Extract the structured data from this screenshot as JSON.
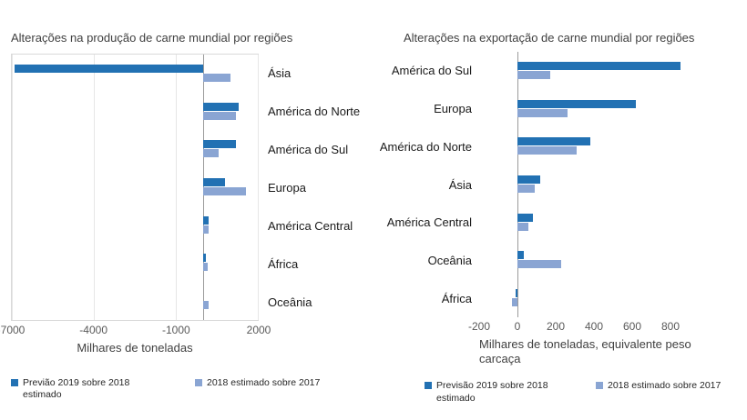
{
  "colors": {
    "series1": "#2271b3",
    "series2": "#8aa5d3",
    "plot_border": "#d9d9d9",
    "gridline": "#e6e6e6",
    "zero_axis": "#9b9b9b"
  },
  "chart_data": [
    {
      "type": "bar",
      "orientation": "horizontal",
      "title": "Alterações na produção de carne mundial por regiões",
      "categories": [
        "Ásia",
        "América do Norte",
        "América do Sul",
        "Europa",
        "América Central",
        "África",
        "Oceânia"
      ],
      "series": [
        {
          "name": "Previão 2019 sobre 2018 estimado",
          "values": [
            -6900,
            1300,
            1200,
            800,
            200,
            100,
            0
          ]
        },
        {
          "name": "2018 estimado sobre 2017",
          "values": [
            1000,
            1200,
            550,
            1550,
            200,
            150,
            200
          ]
        }
      ],
      "xlim": [
        -7000,
        2000
      ],
      "xticks": [
        -7000,
        -4000,
        -1000,
        2000
      ],
      "xlabel": "Milhares de toneladas",
      "category_labels_side": "right",
      "legend_position": "bottom",
      "grid": true
    },
    {
      "type": "bar",
      "orientation": "horizontal",
      "title": "Alterações na exportação de carne mundial por regiões",
      "categories": [
        "América do Sul",
        "Europa",
        "América do Norte",
        "Ásia",
        "América Central",
        "Oceânia",
        "África"
      ],
      "series": [
        {
          "name": "Previsão 2019 sobre 2018 estimado",
          "values": [
            850,
            620,
            380,
            120,
            80,
            35,
            -10
          ]
        },
        {
          "name": "2018 estimado sobre 2017",
          "values": [
            170,
            260,
            310,
            90,
            55,
            230,
            -30
          ]
        }
      ],
      "xlim": [
        -200,
        1000
      ],
      "xticks": [
        -200,
        0,
        200,
        400,
        600,
        800
      ],
      "xlabel": "Milhares de toneladas, equivalente peso carcaça",
      "category_labels_side": "left",
      "legend_position": "bottom",
      "grid": false
    }
  ]
}
